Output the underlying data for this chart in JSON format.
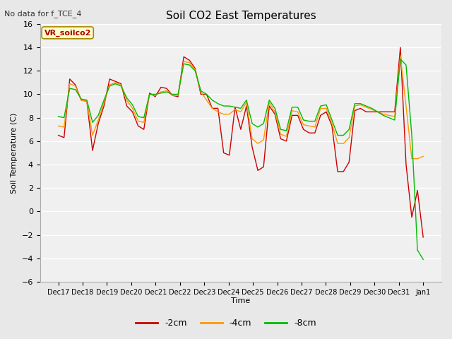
{
  "title": "Soil CO2 East Temperatures",
  "top_left_text": "No data for f_TCE_4",
  "box_label": "VR_soilco2",
  "ylabel": "Soil Temperature (C)",
  "xlabel": "Time",
  "ylim": [
    -6,
    16
  ],
  "fig_facecolor": "#e8e8e8",
  "plot_facecolor": "#f0f0f0",
  "grid_color": "#ffffff",
  "legend_entries": [
    "-2cm",
    "-4cm",
    "-8cm"
  ],
  "legend_colors": [
    "#cc0000",
    "#ff9900",
    "#00bb00"
  ],
  "x_tick_labels": [
    "Dec 17",
    "Dec 18",
    "Dec 19",
    "Dec 20",
    "Dec 21",
    "Dec 22",
    "Dec 23",
    "Dec 24",
    "Dec 25",
    "Dec 26",
    "Dec 27",
    "Dec 28",
    "Dec 29",
    "Dec 30",
    "Dec 31",
    "Jan 1"
  ],
  "red_data": [
    6.5,
    6.3,
    11.3,
    10.8,
    9.5,
    9.4,
    5.2,
    7.5,
    9.0,
    11.3,
    11.1,
    10.9,
    9.0,
    8.5,
    7.3,
    7.0,
    10.1,
    9.8,
    10.6,
    10.5,
    9.9,
    9.8,
    13.2,
    12.9,
    12.2,
    10.0,
    10.0,
    8.8,
    8.8,
    5.0,
    4.8,
    8.9,
    7.0,
    9.0,
    5.5,
    3.5,
    3.8,
    9.0,
    8.3,
    6.2,
    6.0,
    8.2,
    8.2,
    7.0,
    6.7,
    6.7,
    8.2,
    8.5,
    7.3,
    3.4,
    3.4,
    4.2,
    8.6,
    8.8,
    8.5,
    8.5,
    8.5,
    8.5,
    8.5,
    8.5,
    14.0,
    4.0,
    -0.5,
    1.8,
    -2.2
  ],
  "orange_data": [
    7.3,
    7.2,
    10.9,
    10.7,
    9.5,
    9.4,
    6.5,
    7.8,
    9.3,
    10.8,
    11.0,
    10.8,
    9.5,
    8.8,
    7.7,
    7.6,
    10.0,
    9.9,
    10.2,
    10.3,
    9.9,
    9.9,
    12.8,
    12.7,
    12.1,
    10.2,
    9.5,
    8.8,
    8.5,
    8.3,
    8.3,
    8.7,
    8.5,
    9.3,
    6.2,
    5.8,
    6.1,
    9.3,
    8.5,
    6.6,
    6.4,
    8.6,
    8.5,
    7.4,
    7.3,
    7.2,
    8.8,
    8.8,
    7.5,
    5.8,
    5.8,
    6.3,
    9.0,
    9.1,
    8.9,
    8.7,
    8.5,
    8.3,
    8.2,
    8.1,
    13.3,
    9.0,
    4.5,
    4.5,
    4.7
  ],
  "green_data": [
    8.1,
    8.0,
    10.5,
    10.4,
    9.6,
    9.5,
    7.6,
    8.2,
    9.5,
    10.7,
    10.9,
    10.7,
    9.7,
    9.1,
    8.1,
    8.0,
    10.0,
    10.0,
    10.1,
    10.2,
    10.0,
    10.0,
    12.6,
    12.5,
    12.0,
    10.3,
    10.0,
    9.5,
    9.2,
    9.0,
    9.0,
    8.9,
    8.8,
    9.5,
    7.5,
    7.2,
    7.5,
    9.5,
    8.8,
    7.0,
    6.9,
    8.9,
    8.9,
    7.8,
    7.7,
    7.7,
    9.0,
    9.1,
    7.8,
    6.5,
    6.5,
    7.0,
    9.2,
    9.2,
    9.0,
    8.8,
    8.5,
    8.2,
    8.0,
    7.8,
    13.0,
    12.5,
    6.5,
    -3.3,
    -4.1
  ]
}
